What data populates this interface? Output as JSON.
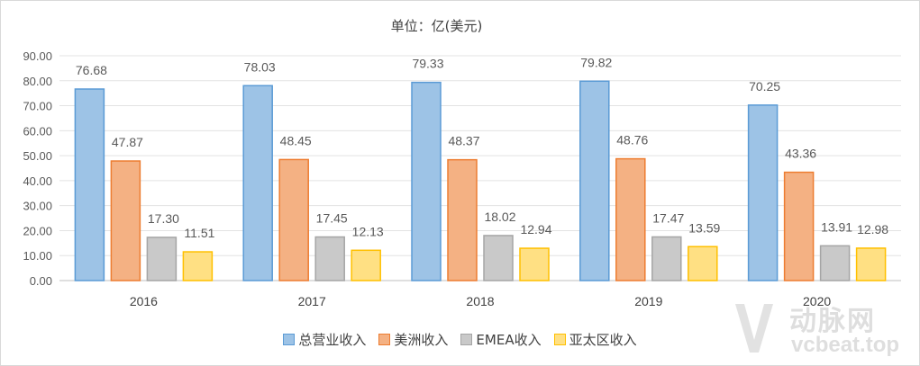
{
  "chart_data": {
    "type": "bar",
    "title": "单位：亿(美元)",
    "categories": [
      "2016",
      "2017",
      "2018",
      "2019",
      "2020"
    ],
    "series": [
      {
        "name": "总营业收入",
        "values": [
          76.68,
          78.03,
          79.33,
          79.82,
          70.25
        ],
        "color": "#9dc3e6",
        "stroke": "#5b9bd5"
      },
      {
        "name": "美洲收入",
        "values": [
          47.87,
          48.45,
          48.37,
          48.76,
          43.36
        ],
        "color": "#f4b183",
        "stroke": "#ed7d31"
      },
      {
        "name": "EMEA收入",
        "values": [
          17.3,
          17.45,
          18.02,
          17.47,
          13.91
        ],
        "color": "#c9c9c9",
        "stroke": "#a5a5a5"
      },
      {
        "name": "亚太区收入",
        "values": [
          11.51,
          12.13,
          12.94,
          13.59,
          12.98
        ],
        "color": "#ffe083",
        "stroke": "#ffc000"
      }
    ],
    "ylim": [
      0,
      90
    ],
    "yticks": [
      "0.00",
      "10.00",
      "20.00",
      "30.00",
      "40.00",
      "50.00",
      "60.00",
      "70.00",
      "80.00",
      "90.00"
    ],
    "grid": true,
    "legend_position": "bottom"
  },
  "watermark": {
    "cn": "动脉网",
    "url": "vcbeat.top"
  }
}
